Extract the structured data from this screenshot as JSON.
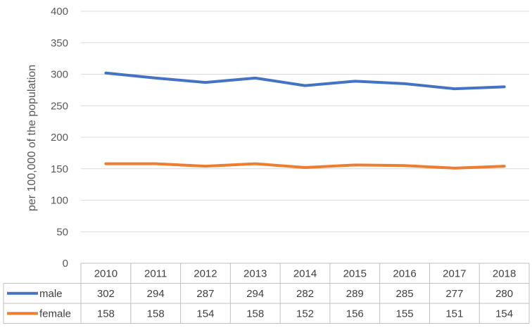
{
  "chart_data": {
    "type": "line",
    "title": "",
    "xlabel": "",
    "ylabel": "per 100,000 of the population",
    "ylim": [
      0,
      400
    ],
    "yticks": [
      0,
      50,
      100,
      150,
      200,
      250,
      300,
      350,
      400
    ],
    "grid": true,
    "legend": "data-table",
    "categories": [
      "2010",
      "2011",
      "2012",
      "2013",
      "2014",
      "2015",
      "2016",
      "2017",
      "2018"
    ],
    "series": [
      {
        "name": "male",
        "color": "#4472C4",
        "values": [
          302,
          294,
          287,
          294,
          282,
          289,
          285,
          277,
          280
        ]
      },
      {
        "name": "female",
        "color": "#ED7D31",
        "values": [
          158,
          158,
          154,
          158,
          152,
          156,
          155,
          151,
          154
        ]
      }
    ]
  }
}
